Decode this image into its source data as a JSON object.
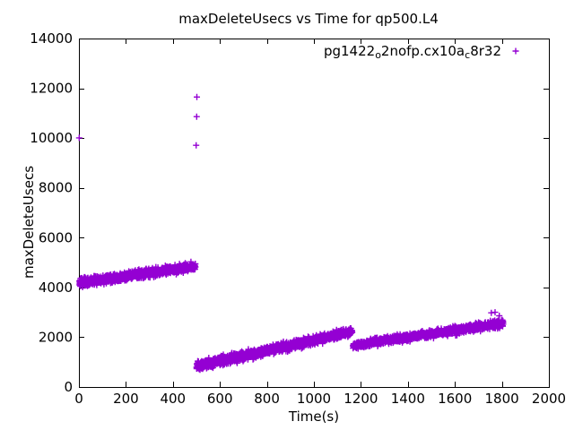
{
  "title": "maxDeleteUsecs vs Time for qp500.L4",
  "axes": {
    "x": {
      "label": "Time(s)",
      "min": 0,
      "max": 2000,
      "tick_step": 200
    },
    "y": {
      "label": "maxDeleteUsecs",
      "min": 0,
      "max": 14000,
      "tick_step": 2000
    }
  },
  "legend": {
    "position": "top-right",
    "entry": {
      "plain_name": "pg1422_o2nofp.cx10a_c8r32",
      "text_parts": [
        {
          "text": "pg1422",
          "sub": false
        },
        {
          "text": "o",
          "sub": true
        },
        {
          "text": "2nofp.cx10a",
          "sub": false
        },
        {
          "text": "c",
          "sub": true
        },
        {
          "text": "8r32",
          "sub": false
        }
      ],
      "marker": "plus-icon",
      "color": "#9400D3"
    }
  },
  "chart_data": {
    "type": "scatter",
    "title": "maxDeleteUsecs vs Time for qp500.L4",
    "xlabel": "Time(s)",
    "ylabel": "maxDeleteUsecs",
    "xlim": [
      0,
      2000
    ],
    "ylim": [
      0,
      14000
    ],
    "x_ticks": [
      0,
      200,
      400,
      600,
      800,
      1000,
      1200,
      1400,
      1600,
      1800,
      2000
    ],
    "y_ticks": [
      0,
      2000,
      4000,
      6000,
      8000,
      10000,
      12000,
      14000
    ],
    "grid": false,
    "legend_position": "top-right",
    "series": [
      {
        "name": "pg1422_o2nofp.cx10a_c8r32",
        "marker": "plus",
        "color": "#9400D3",
        "trend_segments": [
          {
            "x_start": 2,
            "x_end": 496,
            "y_center_start": 4180,
            "y_center_end": 4840,
            "y_spread_start": 300,
            "y_spread_end": 260,
            "points": 900
          },
          {
            "x_start": 500,
            "x_end": 1163,
            "y_center_start": 830,
            "y_center_end": 2230,
            "y_spread_start": 340,
            "y_spread_end": 280,
            "points": 1050
          },
          {
            "x_start": 1166,
            "x_end": 1806,
            "y_center_start": 1670,
            "y_center_end": 2570,
            "y_spread_start": 240,
            "y_spread_end": 290,
            "points": 1000
          }
        ],
        "outliers": [
          [
            1,
            10010
          ],
          [
            499,
            9710
          ],
          [
            501,
            10860
          ],
          [
            502,
            11650
          ]
        ],
        "high_strays": [
          [
            1755,
            2980
          ],
          [
            1771,
            3000
          ],
          [
            1789,
            2860
          ]
        ]
      }
    ]
  }
}
